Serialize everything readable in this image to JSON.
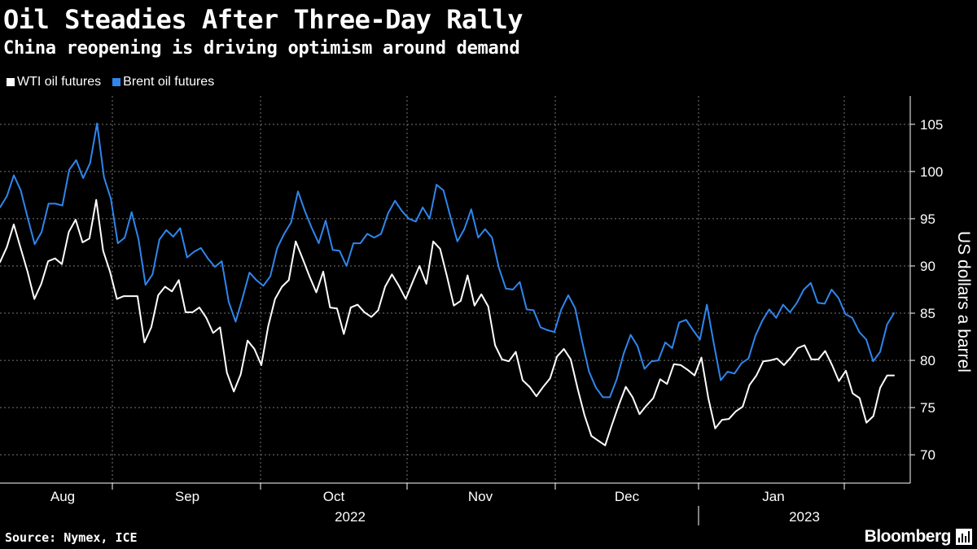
{
  "colors": {
    "background": "#000000",
    "wti": "#ffffff",
    "brent": "#2f86ed",
    "grid": "#777777"
  },
  "footer": {
    "source": "Source: Nymex, ICE",
    "brand": "Bloomberg",
    "brand_icon": "bloomberg-chart-icon"
  },
  "chart_data": {
    "type": "line",
    "title": "Oil Steadies After Three-Day Rally",
    "subtitle": "China reopening is driving optimism around demand",
    "ylabel": "US dollars a barrel",
    "xlabel": "",
    "ylim": [
      67,
      108
    ],
    "yticks": [
      70,
      75,
      80,
      85,
      90,
      95,
      100,
      105
    ],
    "months": [
      "Aug",
      "Sep",
      "Oct",
      "Nov",
      "Dec",
      "Jan"
    ],
    "years": [
      "2022",
      "2023"
    ],
    "grid": true,
    "legend_position": "top-left",
    "series": [
      {
        "name": "WTI oil futures",
        "color": "#ffffff",
        "values": [
          90.4,
          92.0,
          94.4,
          91.9,
          89.4,
          86.5,
          88.1,
          90.5,
          90.8,
          90.2,
          93.6,
          94.9,
          92.5,
          92.9,
          97.0,
          91.6,
          89.4,
          86.5,
          86.8,
          86.8,
          86.8,
          81.9,
          83.5,
          86.9,
          87.8,
          87.3,
          88.5,
          85.1,
          85.1,
          85.6,
          84.5,
          82.9,
          83.5,
          78.7,
          76.7,
          78.5,
          82.1,
          81.2,
          79.5,
          83.6,
          86.5,
          87.8,
          88.5,
          92.6,
          90.8,
          88.9,
          87.2,
          89.4,
          85.6,
          85.5,
          82.8,
          85.6,
          85.9,
          85.1,
          84.6,
          85.3,
          87.8,
          89.1,
          87.9,
          86.5,
          88.3,
          90.0,
          88.1,
          92.6,
          91.8,
          88.9,
          85.8,
          86.3,
          89.0,
          85.8,
          87.0,
          85.7,
          81.6,
          80.1,
          79.9,
          80.9,
          77.9,
          77.2,
          76.2,
          77.2,
          78.1,
          80.4,
          81.2,
          80.1,
          77.0,
          74.2,
          72.0,
          71.5,
          71.0,
          73.2,
          75.3,
          77.2,
          76.1,
          74.3,
          75.2,
          76.0,
          78.0,
          77.5,
          79.6,
          79.5,
          79.0,
          78.4,
          80.3,
          76.0,
          72.8,
          73.7,
          73.8,
          74.6,
          75.1,
          77.4,
          78.4,
          79.9,
          80.0,
          80.2,
          79.5,
          80.3,
          81.3,
          81.6,
          80.1,
          80.1,
          81.0,
          79.5,
          77.8,
          78.9,
          76.5,
          76.0,
          73.4,
          74.1,
          77.1,
          78.4,
          78.4
        ]
      },
      {
        "name": "Brent oil futures",
        "color": "#2f86ed",
        "values": [
          96.2,
          97.4,
          99.6,
          98.0,
          95.1,
          92.3,
          93.6,
          96.6,
          96.6,
          96.4,
          100.2,
          101.2,
          99.3,
          100.9,
          105.1,
          99.4,
          97.1,
          92.4,
          93.0,
          95.7,
          92.8,
          88.0,
          89.1,
          92.8,
          93.8,
          93.1,
          94.0,
          90.9,
          91.5,
          91.9,
          90.8,
          89.9,
          90.5,
          86.2,
          84.1,
          86.6,
          89.3,
          88.5,
          87.9,
          88.9,
          91.9,
          93.4,
          94.6,
          97.9,
          95.8,
          94.0,
          92.4,
          94.8,
          91.7,
          91.6,
          90.0,
          92.4,
          92.4,
          93.4,
          93.0,
          93.4,
          95.6,
          96.9,
          95.8,
          95.0,
          94.7,
          96.2,
          95.0,
          98.6,
          98.0,
          95.2,
          92.6,
          93.9,
          96.0,
          93.0,
          93.9,
          93.0,
          89.8,
          87.6,
          87.5,
          88.3,
          85.4,
          85.3,
          83.5,
          83.2,
          83.0,
          85.4,
          86.9,
          85.5,
          82.0,
          78.8,
          77.1,
          76.1,
          76.1,
          78.0,
          80.7,
          82.7,
          81.5,
          79.1,
          79.9,
          80.0,
          81.9,
          81.3,
          84.0,
          84.3,
          83.2,
          82.2,
          85.9,
          81.8,
          77.9,
          78.8,
          78.6,
          79.7,
          80.2,
          82.6,
          84.2,
          85.4,
          84.5,
          85.9,
          85.1,
          86.1,
          87.5,
          88.2,
          86.1,
          86.0,
          87.5,
          86.6,
          84.9,
          84.5,
          83.0,
          82.2,
          79.9,
          80.9,
          83.8,
          85.0
        ]
      }
    ]
  }
}
